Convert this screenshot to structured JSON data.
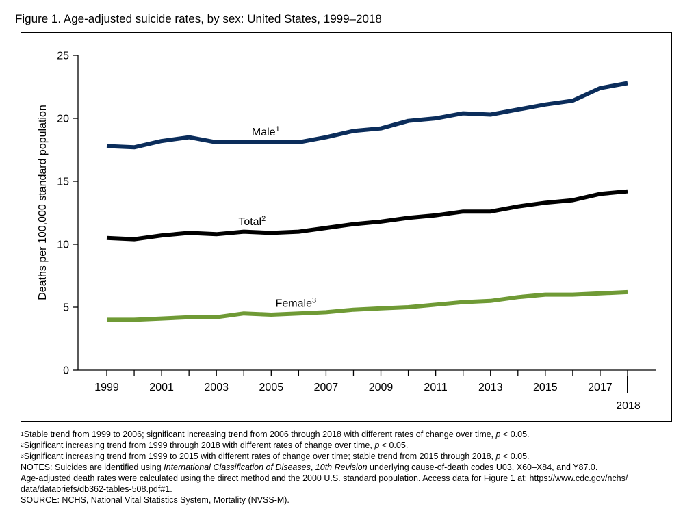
{
  "title": "Figure 1. Age-adjusted suicide rates, by sex: United States, 1999–2018",
  "chart_data": {
    "type": "line",
    "title": "Figure 1. Age-adjusted suicide rates, by sex: United States, 1999–2018",
    "xlabel": "",
    "ylabel": "Deaths per 100,000 standard population",
    "x": [
      1999,
      2000,
      2001,
      2002,
      2003,
      2004,
      2005,
      2006,
      2007,
      2008,
      2009,
      2010,
      2011,
      2012,
      2013,
      2014,
      2015,
      2016,
      2017,
      2018
    ],
    "x_tick_labels": [
      "1999",
      "2001",
      "2003",
      "2005",
      "2007",
      "2009",
      "2011",
      "2013",
      "2015",
      "2017",
      "2018"
    ],
    "ylim": [
      0,
      25
    ],
    "y_ticks": [
      0,
      5,
      10,
      15,
      20,
      25
    ],
    "grid": false,
    "legend": "none",
    "series": [
      {
        "name": "Male",
        "footnote": "1",
        "color": "#0b2d5b",
        "values": [
          17.8,
          17.7,
          18.2,
          18.5,
          18.1,
          18.1,
          18.1,
          18.1,
          18.5,
          19.0,
          19.2,
          19.8,
          20.0,
          20.4,
          20.3,
          20.7,
          21.1,
          21.4,
          22.4,
          22.8
        ]
      },
      {
        "name": "Total",
        "footnote": "2",
        "color": "#000000",
        "values": [
          10.5,
          10.4,
          10.7,
          10.9,
          10.8,
          11.0,
          10.9,
          11.0,
          11.3,
          11.6,
          11.8,
          12.1,
          12.3,
          12.6,
          12.6,
          13.0,
          13.3,
          13.5,
          14.0,
          14.2
        ]
      },
      {
        "name": "Female",
        "footnote": "3",
        "color": "#6f9a35",
        "values": [
          4.0,
          4.0,
          4.1,
          4.2,
          4.2,
          4.5,
          4.4,
          4.5,
          4.6,
          4.8,
          4.9,
          5.0,
          5.2,
          5.4,
          5.5,
          5.8,
          6.0,
          6.0,
          6.1,
          6.2
        ]
      }
    ]
  },
  "notes": [
    {
      "sup": "1",
      "text": "Stable trend from 1999 to 2006; significant increasing trend from 2006 through 2018 with different rates of change over time, ",
      "pre_italic": "",
      "italic": "p",
      "post": " < 0.05."
    },
    {
      "sup": "2",
      "text": "Significant increasing trend from 1999 through 2018 with different rates of change over time, ",
      "pre_italic": "",
      "italic": "p",
      "post": " < 0.05."
    },
    {
      "sup": "3",
      "text": "Significant increasing trend from 1999 to 2015 with different rates of change over time; stable trend from 2015 through 2018, ",
      "pre_italic": "",
      "italic": "p",
      "post": " < 0.05."
    },
    {
      "sup": "",
      "text": "NOTES: Suicides are identified using ",
      "pre_italic": "",
      "italic": "International Classification of Diseases",
      "post": ", "
    },
    {
      "sup": "",
      "text": "Age-adjusted death rates were calculated using the direct method and the 2000 U.S. standard population. Access data for Figure 1 at: https://www.cdc.gov/nchs/",
      "pre_italic": "",
      "italic": "",
      "post": ""
    },
    {
      "sup": "",
      "text": "data/databriefs/db362-tables-508.pdf#1.",
      "pre_italic": "",
      "italic": "",
      "post": ""
    },
    {
      "sup": "",
      "text": "SOURCE: NCHS, National Vital Statistics System, Mortality (NVSS-M).",
      "pre_italic": "",
      "italic": "",
      "post": ""
    }
  ],
  "notes_line4_extra": {
    "italic2": "10th Revision",
    "tail": " underlying cause-of-death codes U03, X60–X84, and Y87.0."
  }
}
